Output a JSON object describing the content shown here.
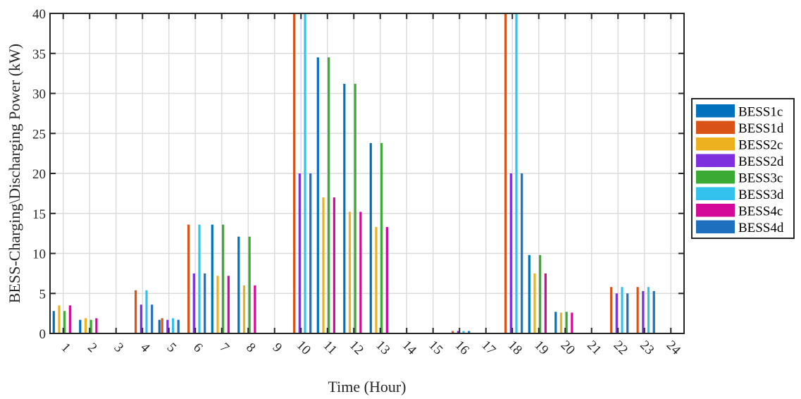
{
  "chart_data": {
    "type": "bar",
    "xlabel": "Time (Hour)",
    "ylabel": "BESS-Charging\\Discharging Power (kW)",
    "ylim": [
      0,
      40
    ],
    "yticks": [
      0,
      5,
      10,
      15,
      20,
      25,
      30,
      35,
      40
    ],
    "categories": [
      "1",
      "2",
      "3",
      "4",
      "5",
      "6",
      "7",
      "8",
      "9",
      "10",
      "11",
      "12",
      "13",
      "14",
      "15",
      "16",
      "17",
      "18",
      "19",
      "20",
      "21",
      "22",
      "23",
      "24"
    ],
    "grid": true,
    "legend_position": "right",
    "series": [
      {
        "name": "BESS1c",
        "color": "#0072BD",
        "values": [
          2.8,
          1.7,
          0,
          0,
          1.7,
          0,
          13.6,
          12.1,
          0,
          0,
          34.5,
          31.2,
          23.8,
          0,
          0,
          0,
          0,
          0,
          9.8,
          2.7,
          0,
          0,
          0,
          0
        ]
      },
      {
        "name": "BESS1d",
        "color": "#D95319",
        "values": [
          0,
          0,
          0,
          5.4,
          1.9,
          13.6,
          0,
          0,
          0,
          40,
          0,
          0,
          0,
          0,
          0,
          0.3,
          0,
          40,
          0,
          0,
          0,
          5.8,
          5.8,
          0
        ]
      },
      {
        "name": "BESS2c",
        "color": "#EDB120",
        "values": [
          3.5,
          1.9,
          0,
          0,
          0,
          0,
          7.2,
          6.0,
          0,
          0,
          17.0,
          15.2,
          13.3,
          0,
          0,
          0,
          0,
          0,
          7.5,
          2.6,
          0,
          0,
          0,
          0
        ]
      },
      {
        "name": "BESS2d",
        "color": "#7E2FDE",
        "values": [
          0,
          0,
          0,
          3.6,
          1.7,
          7.5,
          0,
          0,
          0,
          20,
          0,
          0,
          0,
          0,
          0,
          0.3,
          0,
          20,
          0,
          0,
          0,
          5.0,
          5.3,
          0
        ]
      },
      {
        "name": "BESS3c",
        "color": "#3AAA35",
        "values": [
          2.8,
          1.7,
          0,
          0,
          0,
          0,
          13.6,
          12.1,
          0,
          0,
          34.5,
          31.2,
          23.8,
          0,
          0,
          0,
          0,
          0,
          9.8,
          2.7,
          0,
          0,
          0,
          0
        ]
      },
      {
        "name": "BESS3d",
        "color": "#33C1EE",
        "values": [
          0,
          0,
          0,
          5.4,
          1.9,
          13.6,
          0,
          0,
          0,
          40,
          0,
          0,
          0,
          0,
          0,
          0.3,
          0,
          40,
          0,
          0,
          0,
          5.8,
          5.8,
          0
        ]
      },
      {
        "name": "BESS4c",
        "color": "#D4099A",
        "values": [
          3.5,
          1.9,
          0,
          0,
          0,
          0,
          7.2,
          6.0,
          0,
          0,
          17.0,
          15.2,
          13.3,
          0,
          0,
          0,
          0,
          0,
          7.5,
          2.6,
          0,
          0,
          0,
          0
        ]
      },
      {
        "name": "BESS4d",
        "color": "#1F6FBF",
        "values": [
          0,
          0,
          0,
          3.6,
          1.7,
          7.5,
          0,
          0,
          0,
          20,
          0,
          0,
          0,
          0,
          0,
          0.3,
          0,
          20,
          0,
          0,
          0,
          5.0,
          5.3,
          0
        ]
      }
    ]
  }
}
